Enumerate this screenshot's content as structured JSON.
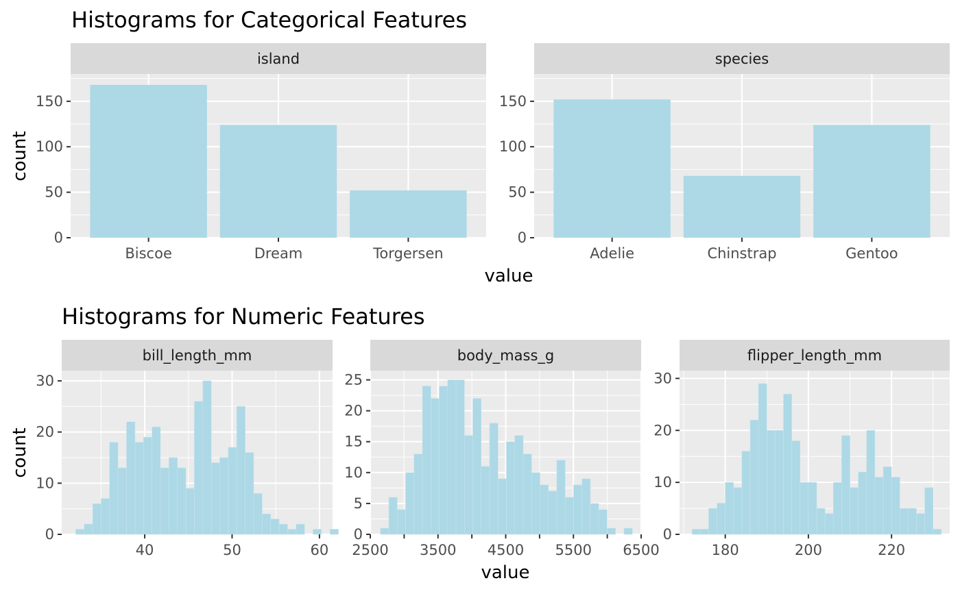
{
  "colors": {
    "panel_background": "#ebebeb",
    "strip_background": "#d9d9d9",
    "grid": "#ffffff",
    "bar_fill": "#add8e6",
    "tick": "#333333",
    "tick_label": "#4d4d4d"
  },
  "top": {
    "title": "Histograms for Categorical Features",
    "xlabel": "value",
    "ylabel": "count"
  },
  "bottom": {
    "title": "Histograms for Numeric Features",
    "xlabel": "value",
    "ylabel": "count"
  },
  "chart_data": [
    {
      "type": "bar",
      "facet": "island",
      "categories": [
        "Biscoe",
        "Dream",
        "Torgersen"
      ],
      "values": [
        168,
        124,
        52
      ],
      "xlabel": "value",
      "ylabel": "count",
      "ylim": [
        0,
        180
      ],
      "yticks": [
        0,
        50,
        100,
        150
      ],
      "grid": true
    },
    {
      "type": "bar",
      "facet": "species",
      "categories": [
        "Adelie",
        "Chinstrap",
        "Gentoo"
      ],
      "values": [
        152,
        68,
        124
      ],
      "xlabel": "value",
      "ylabel": "count",
      "ylim": [
        0,
        180
      ],
      "yticks": [
        0,
        50,
        100,
        150
      ],
      "grid": true
    },
    {
      "type": "bar",
      "facet": "bill_length_mm",
      "bin_start": 32.1,
      "bin_width": 0.97,
      "values": [
        1,
        2,
        6,
        7,
        18,
        13,
        22,
        18,
        19,
        21,
        13,
        15,
        13,
        9,
        26,
        30,
        14,
        15,
        17,
        25,
        16,
        8,
        4,
        3,
        2,
        1,
        2,
        0,
        1,
        0,
        1
      ],
      "xlabel": "value",
      "ylabel": "count",
      "xlim": [
        30.5,
        61.5
      ],
      "ylim": [
        0,
        32
      ],
      "xticks": [
        40,
        50,
        60
      ],
      "yticks": [
        0,
        10,
        20,
        30
      ],
      "grid": true
    },
    {
      "type": "bar",
      "facet": "body_mass_g",
      "bin_start": 2650,
      "bin_width": 124,
      "values": [
        1,
        6,
        4,
        10,
        13,
        24,
        22,
        24,
        25,
        25,
        16,
        22,
        11,
        18,
        9,
        15,
        16,
        13,
        10,
        8,
        7,
        12,
        6,
        8,
        9,
        5,
        4,
        1,
        0,
        1
      ],
      "xlabel": "value",
      "ylabel": "count",
      "xlim": [
        2500,
        6500
      ],
      "ylim": [
        0,
        26.5
      ],
      "xticks": [
        2500,
        3500,
        4500,
        5500,
        6500
      ],
      "xtick_labels": [
        "2500",
        "3500",
        "4500",
        "5500",
        "6500"
      ],
      "minor_xticks": [
        3000,
        4000,
        5000,
        6000
      ],
      "yticks": [
        0,
        5,
        10,
        15,
        20,
        25
      ],
      "grid": true
    },
    {
      "type": "bar",
      "facet": "flipper_length_mm",
      "bin_start": 172,
      "bin_width": 2,
      "values": [
        1,
        1,
        5,
        6,
        10,
        9,
        16,
        22,
        29,
        20,
        20,
        27,
        18,
        10,
        10,
        5,
        4,
        10,
        19,
        9,
        12,
        20,
        11,
        13,
        11,
        5,
        5,
        4,
        9,
        1
      ],
      "xlabel": "value",
      "ylabel": "count",
      "xlim": [
        169,
        234
      ],
      "ylim": [
        0,
        31.5
      ],
      "xticks": [
        180,
        200,
        220
      ],
      "yticks": [
        0,
        10,
        20,
        30
      ],
      "grid": true
    }
  ]
}
